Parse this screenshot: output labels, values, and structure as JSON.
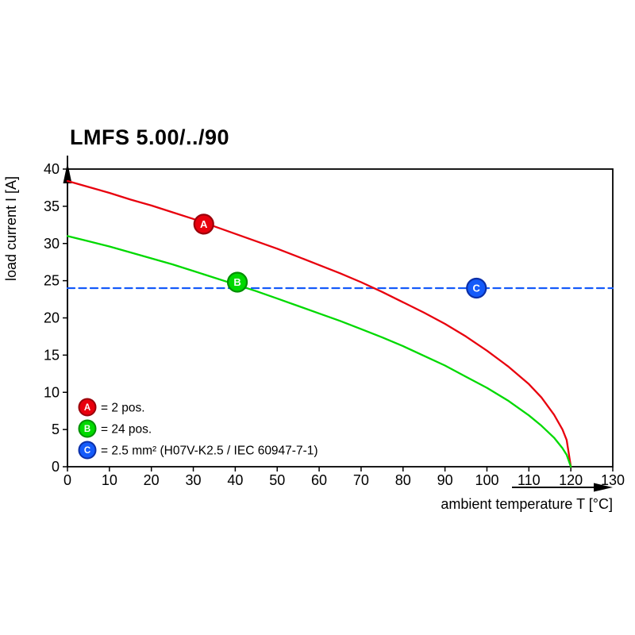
{
  "page": {
    "background": "#ffffff"
  },
  "chart_data": {
    "type": "line",
    "title": "LMFS 5.00/../90",
    "xlabel": "ambient temperature T [°C]",
    "ylabel": "load current I [A]",
    "xlim": [
      0,
      130
    ],
    "ylim": [
      0,
      40
    ],
    "xticks": [
      0,
      10,
      20,
      30,
      40,
      50,
      60,
      70,
      80,
      90,
      100,
      110,
      120,
      130
    ],
    "yticks": [
      0,
      5,
      10,
      15,
      20,
      25,
      30,
      35,
      40
    ],
    "grid": false,
    "legend_position": "inside-bottom-left",
    "axis_color": "#000000",
    "series": [
      {
        "name": "A",
        "legend": "= 2 pos.",
        "color": "#e8000d",
        "edge": "#99000a",
        "style": "solid",
        "marker": {
          "x": 32.5,
          "y": 32.6
        },
        "points": [
          [
            0,
            38.4
          ],
          [
            5,
            37.6
          ],
          [
            10,
            36.8
          ],
          [
            15,
            35.9
          ],
          [
            20,
            35.1
          ],
          [
            25,
            34.2
          ],
          [
            30,
            33.3
          ],
          [
            35,
            32.3
          ],
          [
            40,
            31.3
          ],
          [
            45,
            30.3
          ],
          [
            50,
            29.3
          ],
          [
            55,
            28.2
          ],
          [
            60,
            27.1
          ],
          [
            65,
            26.0
          ],
          [
            70,
            24.8
          ],
          [
            75,
            23.5
          ],
          [
            80,
            22.1
          ],
          [
            85,
            20.7
          ],
          [
            90,
            19.2
          ],
          [
            95,
            17.5
          ],
          [
            100,
            15.6
          ],
          [
            105,
            13.5
          ],
          [
            110,
            11.1
          ],
          [
            113,
            9.3
          ],
          [
            116,
            7.0
          ],
          [
            118,
            5.0
          ],
          [
            119,
            3.6
          ],
          [
            120,
            0
          ]
        ]
      },
      {
        "name": "B",
        "legend": "= 24 pos.",
        "color": "#00d900",
        "edge": "#008f00",
        "style": "solid",
        "marker": {
          "x": 40.5,
          "y": 24.8
        },
        "points": [
          [
            0,
            31.0
          ],
          [
            5,
            30.3
          ],
          [
            10,
            29.6
          ],
          [
            15,
            28.8
          ],
          [
            20,
            28.0
          ],
          [
            25,
            27.2
          ],
          [
            30,
            26.3
          ],
          [
            35,
            25.4
          ],
          [
            40,
            24.5
          ],
          [
            45,
            23.6
          ],
          [
            50,
            22.6
          ],
          [
            55,
            21.6
          ],
          [
            60,
            20.6
          ],
          [
            65,
            19.6
          ],
          [
            70,
            18.5
          ],
          [
            75,
            17.4
          ],
          [
            80,
            16.2
          ],
          [
            85,
            14.9
          ],
          [
            90,
            13.6
          ],
          [
            95,
            12.1
          ],
          [
            100,
            10.6
          ],
          [
            105,
            8.9
          ],
          [
            110,
            6.9
          ],
          [
            113,
            5.5
          ],
          [
            116,
            3.9
          ],
          [
            118,
            2.5
          ],
          [
            119,
            1.6
          ],
          [
            120,
            0
          ]
        ]
      },
      {
        "name": "C",
        "legend": "= 2.5 mm² (H07V-K2.5 / IEC 60947-7-1)",
        "color": "#155bfa",
        "edge": "#0b2fa8",
        "style": "dashed",
        "marker": {
          "x": 97.5,
          "y": 24
        },
        "points": [
          [
            0,
            24
          ],
          [
            130,
            24
          ]
        ]
      }
    ]
  }
}
